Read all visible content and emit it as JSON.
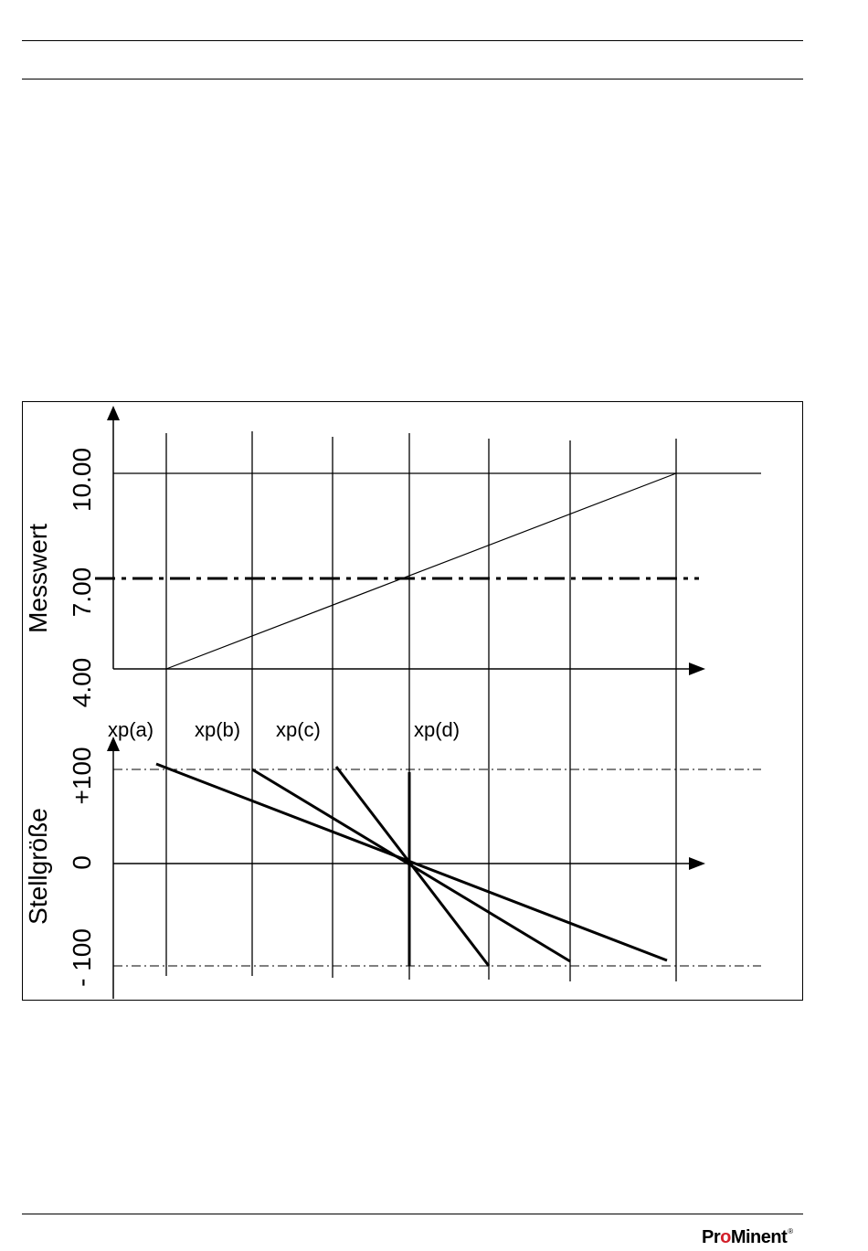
{
  "diagram": {
    "measured_axis": {
      "label": "Messwert",
      "ticks": [
        "4.00",
        "7.00",
        "10.00"
      ]
    },
    "control_axis": {
      "label": "Stellgröße",
      "ticks": [
        "- 100",
        "0",
        "+100"
      ]
    },
    "band_labels": [
      "xp(a)",
      "xp(b)",
      "xp(c)",
      "xp(d)"
    ]
  },
  "footer": {
    "brand_part1": "Pr",
    "brand_accent": "o",
    "brand_part2": "Minent",
    "brand_mark": "®"
  }
}
